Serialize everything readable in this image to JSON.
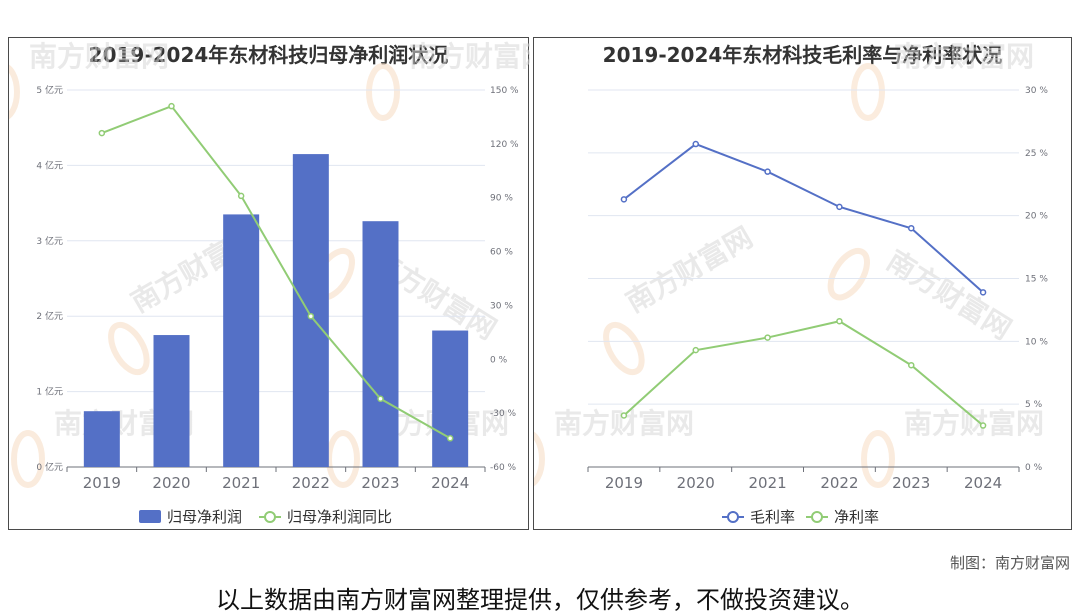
{
  "chart_data": [
    {
      "type": "bar+line",
      "title": "2019-2024年东材科技归母净利润状况",
      "categories": [
        "2019",
        "2020",
        "2021",
        "2022",
        "2023",
        "2024"
      ],
      "left_axis": {
        "ticks": [
          "0 亿元",
          "1 亿元",
          "2 亿元",
          "3 亿元",
          "4 亿元",
          "5 亿元"
        ],
        "ylim": [
          0,
          5
        ]
      },
      "right_axis": {
        "ticks": [
          "-60 %",
          "-30 %",
          "0 %",
          "30 %",
          "60 %",
          "90 %",
          "120 %",
          "150 %"
        ],
        "ylim": [
          -60,
          150
        ]
      },
      "series": [
        {
          "name": "归母净利润",
          "type": "bar",
          "axis": "left",
          "color": "#5470c6",
          "values": [
            0.74,
            1.75,
            3.35,
            4.15,
            3.26,
            1.81
          ]
        },
        {
          "name": "归母净利润同比",
          "type": "line",
          "axis": "right",
          "color": "#91cc75",
          "values": [
            126,
            141,
            91,
            24,
            -22,
            -44
          ]
        }
      ],
      "grid": true,
      "legend_position": "bottom-center"
    },
    {
      "type": "line",
      "title": "2019-2024年东材科技毛利率与净利率状况",
      "categories": [
        "2019",
        "2020",
        "2021",
        "2022",
        "2023",
        "2024"
      ],
      "right_axis": {
        "ticks": [
          "0 %",
          "5 %",
          "10 %",
          "15 %",
          "20 %",
          "25 %",
          "30 %"
        ],
        "ylim": [
          0,
          30
        ]
      },
      "series": [
        {
          "name": "毛利率",
          "type": "line",
          "axis": "right",
          "color": "#5470c6",
          "values": [
            21.3,
            25.7,
            23.5,
            20.7,
            19.0,
            13.9
          ]
        },
        {
          "name": "净利率",
          "type": "line",
          "axis": "right",
          "color": "#91cc75",
          "values": [
            4.1,
            9.3,
            10.3,
            11.6,
            8.1,
            3.3
          ]
        }
      ],
      "grid": true,
      "legend_position": "bottom-center"
    }
  ],
  "watermark": "南方财富网",
  "footer": {
    "credit": "制图：南方财富网",
    "disclaimer": "以上数据由南方财富网整理提供，仅供参考，不做投资建议。"
  }
}
